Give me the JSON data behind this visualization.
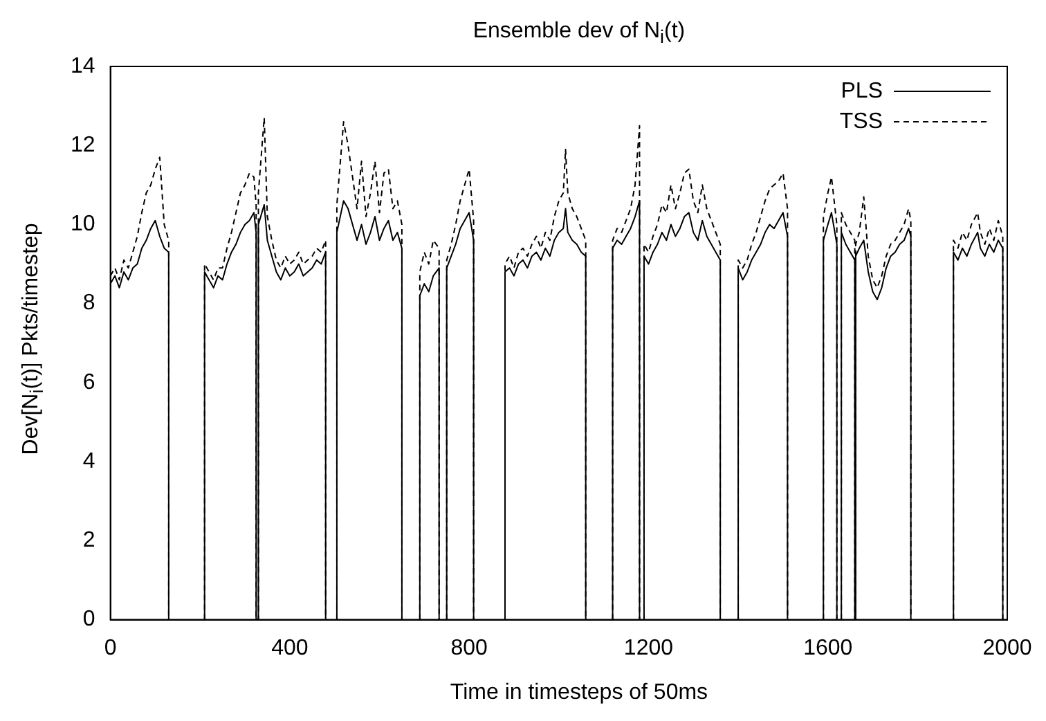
{
  "chart_data": {
    "type": "line",
    "title": "Ensemble dev of N$_{i}$(t)",
    "xlabel": "Time in timesteps of 50ms",
    "ylabel": "Dev[N$_{i}$(t)] Pkts/timestep",
    "xlim": [
      0,
      2000
    ],
    "xticks": [
      0,
      400,
      800,
      1200,
      1600,
      2000
    ],
    "ylim": [
      0,
      14
    ],
    "yticks": [
      0,
      2,
      4,
      6,
      8,
      10,
      12,
      14
    ],
    "grid": false,
    "legend": "top right",
    "marker": "none",
    "x": [
      0,
      10,
      20,
      30,
      40,
      50,
      60,
      70,
      80,
      90,
      100,
      110,
      120,
      130,
      130,
      170,
      210,
      210,
      220,
      230,
      240,
      250,
      260,
      270,
      280,
      290,
      300,
      310,
      320,
      325,
      325,
      330,
      330,
      343,
      350,
      360,
      370,
      380,
      390,
      400,
      410,
      420,
      430,
      440,
      450,
      460,
      470,
      480,
      480,
      492,
      505,
      505,
      520,
      530,
      540,
      550,
      560,
      570,
      580,
      590,
      600,
      610,
      620,
      630,
      640,
      650,
      650,
      672,
      690,
      690,
      700,
      710,
      720,
      733,
      733,
      741,
      750,
      750,
      760,
      770,
      780,
      790,
      800,
      810,
      810,
      845,
      880,
      880,
      890,
      900,
      910,
      920,
      930,
      940,
      950,
      960,
      970,
      980,
      990,
      1000,
      1010,
      1015,
      1020,
      1030,
      1040,
      1050,
      1060,
      1060,
      1090,
      1120,
      1120,
      1130,
      1140,
      1150,
      1160,
      1170,
      1180,
      1180,
      1185,
      1190,
      1190,
      1200,
      1210,
      1220,
      1230,
      1240,
      1250,
      1260,
      1270,
      1280,
      1290,
      1300,
      1310,
      1320,
      1330,
      1340,
      1350,
      1360,
      1360,
      1380,
      1400,
      1400,
      1410,
      1420,
      1430,
      1440,
      1450,
      1460,
      1470,
      1480,
      1490,
      1500,
      1510,
      1510,
      1550,
      1590,
      1590,
      1600,
      1608,
      1620,
      1620,
      1625,
      1630,
      1630,
      1640,
      1650,
      1660,
      1660,
      1662,
      1662,
      1670,
      1680,
      1690,
      1700,
      1710,
      1720,
      1730,
      1740,
      1750,
      1760,
      1770,
      1780,
      1785,
      1785,
      1830,
      1880,
      1880,
      1890,
      1900,
      1910,
      1920,
      1934,
      1940,
      1950,
      1960,
      1970,
      1980,
      1990,
      1990
    ],
    "series": [
      {
        "name": "PLS",
        "color": "#000000",
        "line_style": "solid",
        "values": [
          8.5,
          8.7,
          8.4,
          8.8,
          8.6,
          8.9,
          9.0,
          9.4,
          9.6,
          9.9,
          10.1,
          9.7,
          9.4,
          9.3,
          0,
          null,
          0,
          8.8,
          8.6,
          8.4,
          8.7,
          8.6,
          9.0,
          9.3,
          9.5,
          9.8,
          10.0,
          10.1,
          10.3,
          9.8,
          0,
          0,
          10.0,
          10.5,
          9.6,
          9.2,
          8.8,
          8.6,
          8.9,
          8.7,
          8.8,
          9.0,
          8.7,
          8.8,
          8.9,
          9.1,
          9.0,
          9.3,
          0,
          null,
          0,
          9.8,
          10.6,
          10.4,
          10.0,
          9.6,
          10.0,
          9.5,
          9.8,
          10.2,
          9.6,
          9.9,
          10.1,
          9.6,
          9.8,
          9.4,
          0,
          null,
          0,
          8.2,
          8.5,
          8.3,
          8.7,
          8.9,
          0,
          null,
          0,
          8.9,
          9.2,
          9.5,
          9.9,
          10.1,
          10.3,
          9.6,
          0,
          null,
          0,
          8.8,
          8.9,
          8.7,
          9.0,
          9.1,
          8.9,
          9.2,
          9.3,
          9.1,
          9.4,
          9.2,
          9.6,
          9.8,
          9.9,
          10.4,
          9.8,
          9.6,
          9.5,
          9.3,
          9.2,
          0,
          null,
          0,
          9.4,
          9.6,
          9.5,
          9.7,
          9.9,
          10.2,
          10.6,
          0,
          null,
          0,
          9.2,
          9.0,
          9.3,
          9.5,
          9.8,
          9.6,
          10.0,
          9.7,
          9.9,
          10.2,
          10.3,
          9.8,
          9.6,
          10.1,
          9.7,
          9.5,
          9.3,
          9.1,
          0,
          null,
          0,
          8.9,
          8.6,
          8.8,
          9.1,
          9.3,
          9.5,
          9.8,
          10.0,
          9.9,
          10.1,
          10.3,
          9.7,
          0,
          null,
          0,
          9.6,
          10.0,
          10.3,
          9.5,
          0,
          null,
          0,
          9.8,
          9.5,
          9.3,
          9.1,
          0,
          0,
          9.2,
          9.4,
          9.6,
          8.8,
          8.3,
          8.1,
          8.4,
          8.9,
          9.2,
          9.3,
          9.5,
          9.6,
          9.9,
          9.7,
          0,
          null,
          0,
          9.3,
          9.1,
          9.4,
          9.2,
          9.5,
          9.8,
          9.4,
          9.2,
          9.5,
          9.3,
          9.6,
          9.4,
          0
        ]
      },
      {
        "name": "TSS",
        "color": "#000000",
        "line_style": "dashed",
        "values": [
          8.7,
          8.9,
          8.6,
          9.1,
          8.9,
          9.3,
          9.7,
          10.3,
          10.8,
          11.0,
          11.4,
          11.7,
          10.0,
          9.6,
          0,
          null,
          0,
          9.0,
          8.8,
          8.6,
          8.9,
          8.9,
          9.4,
          9.8,
          10.3,
          10.8,
          11.0,
          11.3,
          11.2,
          10.5,
          0,
          0,
          10.8,
          12.7,
          10.2,
          9.6,
          9.1,
          8.9,
          9.2,
          9.0,
          9.1,
          9.3,
          9.0,
          9.1,
          9.2,
          9.4,
          9.3,
          9.6,
          0,
          null,
          0,
          10.5,
          12.6,
          12.0,
          11.2,
          10.4,
          11.6,
          10.2,
          10.8,
          11.6,
          10.3,
          11.3,
          11.4,
          10.4,
          10.6,
          10.0,
          0,
          null,
          0,
          8.8,
          9.3,
          9.0,
          9.6,
          9.4,
          0,
          null,
          0,
          9.1,
          9.5,
          10.0,
          10.6,
          11.0,
          11.4,
          10.1,
          0,
          null,
          0,
          9.0,
          9.2,
          8.9,
          9.3,
          9.4,
          9.2,
          9.5,
          9.7,
          9.4,
          9.8,
          9.6,
          10.2,
          10.6,
          10.8,
          11.9,
          10.8,
          10.4,
          10.2,
          9.9,
          9.6,
          0,
          null,
          0,
          9.6,
          9.9,
          9.8,
          10.1,
          10.4,
          11.0,
          12.5,
          0,
          null,
          0,
          9.5,
          9.3,
          9.7,
          10.0,
          10.5,
          10.3,
          11.0,
          10.4,
          10.8,
          11.3,
          11.4,
          10.6,
          10.3,
          11.0,
          10.4,
          10.1,
          9.8,
          9.5,
          0,
          null,
          0,
          9.1,
          8.9,
          9.1,
          9.5,
          9.8,
          10.2,
          10.6,
          10.9,
          11.0,
          11.1,
          11.3,
          10.4,
          0,
          null,
          0,
          10.2,
          10.8,
          11.2,
          10.0,
          0,
          null,
          0,
          10.3,
          10.0,
          9.8,
          9.6,
          0,
          0,
          9.5,
          9.8,
          10.7,
          9.2,
          8.6,
          8.4,
          8.7,
          9.2,
          9.5,
          9.6,
          9.8,
          10.0,
          10.4,
          10.1,
          0,
          null,
          0,
          9.6,
          9.4,
          9.8,
          9.6,
          10.0,
          10.3,
          9.8,
          9.5,
          9.9,
          9.6,
          10.1,
          9.7,
          0
        ]
      }
    ]
  }
}
